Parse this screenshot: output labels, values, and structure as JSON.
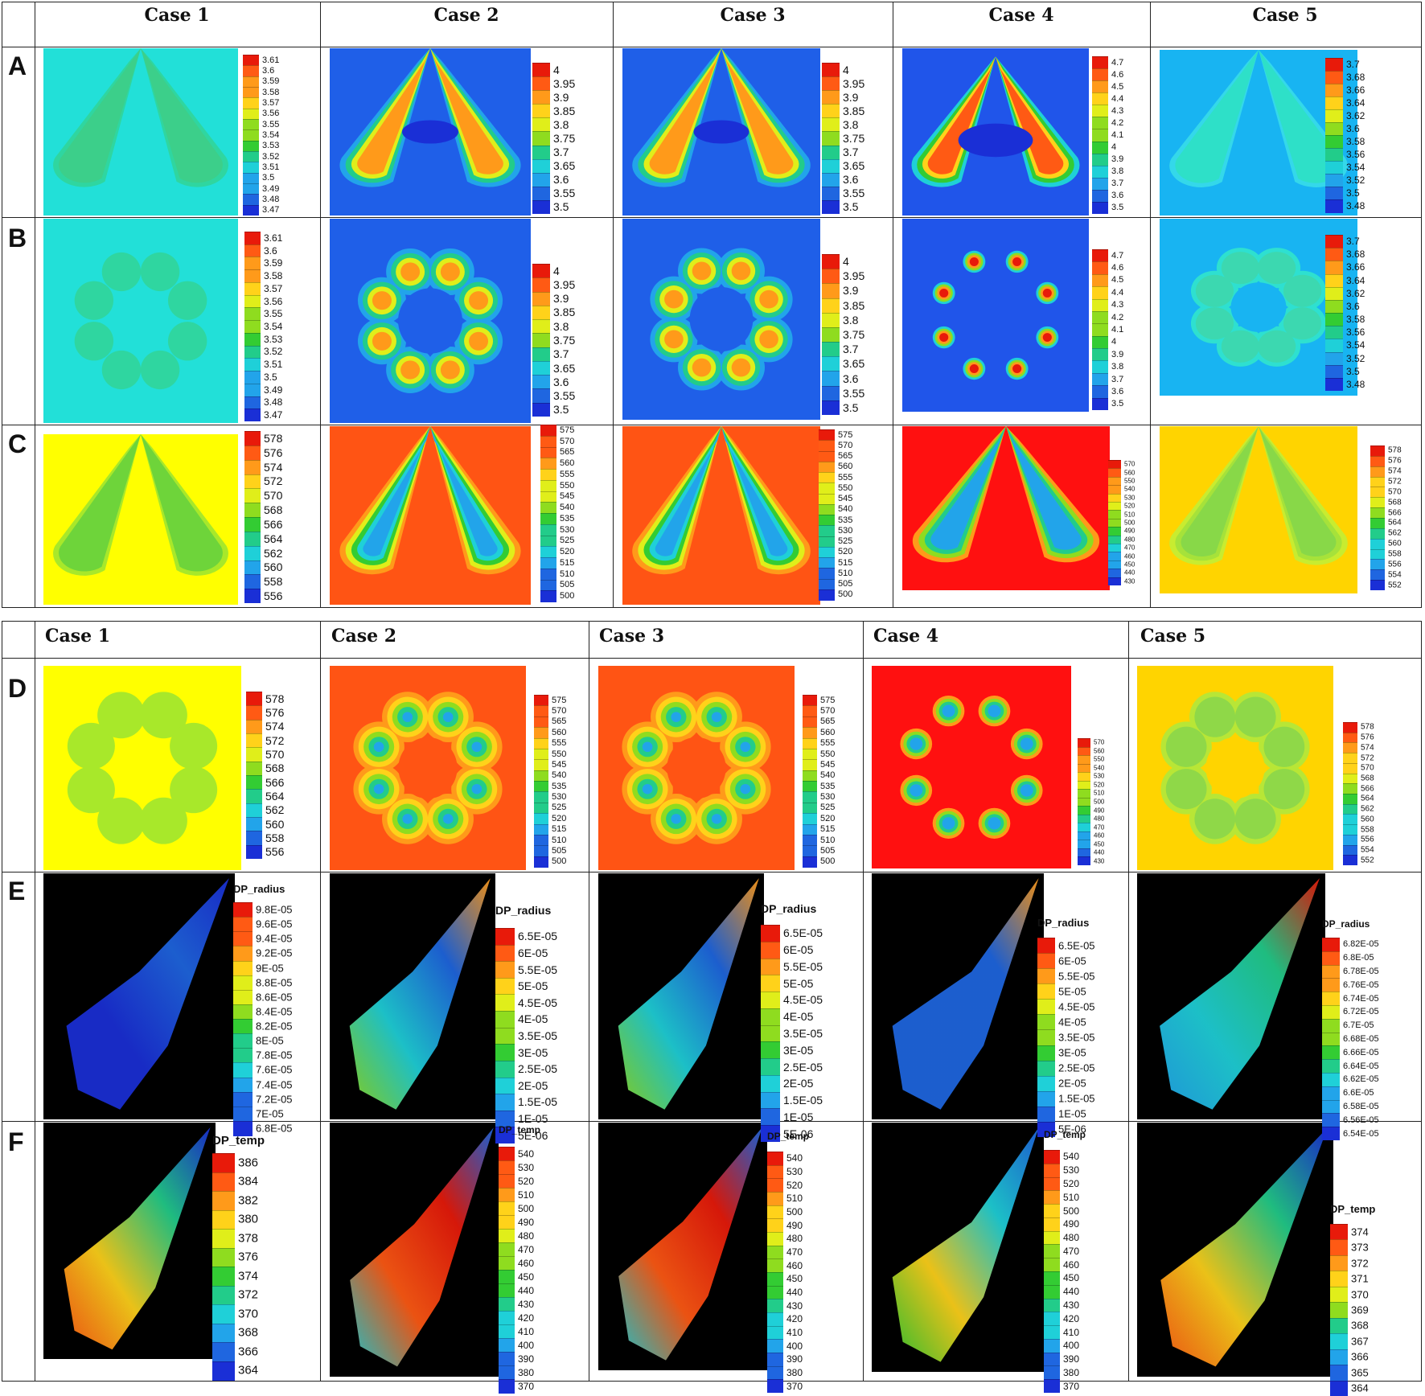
{
  "top_table": {
    "headers": [
      "Case 1",
      "Case 2",
      "Case 3",
      "Case 4",
      "Case 5"
    ],
    "rows": [
      "A",
      "B",
      "C"
    ]
  },
  "bottom_table": {
    "headers": [
      "Case 1",
      "Case 2",
      "Case 3",
      "Case 4",
      "Case 5"
    ],
    "rows": [
      "D",
      "E",
      "F"
    ]
  },
  "colors": {
    "ramp": [
      "#1a2fd6",
      "#1f66e0",
      "#22a4ea",
      "#1fd0d8",
      "#22cc8a",
      "#33cc33",
      "#8fdc1f",
      "#e0ee1a",
      "#ffd21a",
      "#ff9a1a",
      "#ff5a14",
      "#e81a0a"
    ],
    "case1_bg": "#22e0d8",
    "case2_bg": "#1f5fe8",
    "case4_bg": "#2055ea",
    "case5_bg": "#18b4f2",
    "temp1_bg": "#ffff00",
    "temp23_bg": "#ff5414",
    "temp4_bg": "#ff1010",
    "temp5_bg": "#ffd400",
    "particle_bg": "#000000"
  },
  "legends": {
    "A1": {
      "title": "",
      "ticks": [
        "3.61",
        "3.6",
        "3.59",
        "3.58",
        "3.57",
        "3.56",
        "3.55",
        "3.54",
        "3.53",
        "3.52",
        "3.51",
        "3.5",
        "3.49",
        "3.48",
        "3.47"
      ]
    },
    "A2": {
      "title": "",
      "ticks": [
        "4",
        "3.95",
        "3.9",
        "3.85",
        "3.8",
        "3.75",
        "3.7",
        "3.65",
        "3.6",
        "3.55",
        "3.5"
      ]
    },
    "A3": {
      "title": "",
      "ticks": [
        "4",
        "3.95",
        "3.9",
        "3.85",
        "3.8",
        "3.75",
        "3.7",
        "3.65",
        "3.6",
        "3.55",
        "3.5"
      ]
    },
    "A4": {
      "title": "",
      "ticks": [
        "4.7",
        "4.6",
        "4.5",
        "4.4",
        "4.3",
        "4.2",
        "4.1",
        "4",
        "3.9",
        "3.8",
        "3.7",
        "3.6",
        "3.5"
      ]
    },
    "A5": {
      "title": "",
      "ticks": [
        "3.7",
        "3.68",
        "3.66",
        "3.64",
        "3.62",
        "3.6",
        "3.58",
        "3.56",
        "3.54",
        "3.52",
        "3.5",
        "3.48"
      ]
    },
    "B1": {
      "title": "",
      "ticks": [
        "3.61",
        "3.6",
        "3.59",
        "3.58",
        "3.57",
        "3.56",
        "3.55",
        "3.54",
        "3.53",
        "3.52",
        "3.51",
        "3.5",
        "3.49",
        "3.48",
        "3.47"
      ]
    },
    "B2": {
      "title": "",
      "ticks": [
        "4",
        "3.95",
        "3.9",
        "3.85",
        "3.8",
        "3.75",
        "3.7",
        "3.65",
        "3.6",
        "3.55",
        "3.5"
      ]
    },
    "B3": {
      "title": "",
      "ticks": [
        "4",
        "3.95",
        "3.9",
        "3.85",
        "3.8",
        "3.75",
        "3.7",
        "3.65",
        "3.6",
        "3.55",
        "3.5"
      ]
    },
    "B4": {
      "title": "",
      "ticks": [
        "4.7",
        "4.6",
        "4.5",
        "4.4",
        "4.3",
        "4.2",
        "4.1",
        "4",
        "3.9",
        "3.8",
        "3.7",
        "3.6",
        "3.5"
      ]
    },
    "B5": {
      "title": "",
      "ticks": [
        "3.7",
        "3.68",
        "3.66",
        "3.64",
        "3.62",
        "3.6",
        "3.58",
        "3.56",
        "3.54",
        "3.52",
        "3.5",
        "3.48"
      ]
    },
    "C1": {
      "title": "",
      "ticks": [
        "578",
        "576",
        "574",
        "572",
        "570",
        "568",
        "566",
        "564",
        "562",
        "560",
        "558",
        "556"
      ]
    },
    "C2": {
      "title": "",
      "ticks": [
        "575",
        "570",
        "565",
        "560",
        "555",
        "550",
        "545",
        "540",
        "535",
        "530",
        "525",
        "520",
        "515",
        "510",
        "505",
        "500"
      ]
    },
    "C3": {
      "title": "",
      "ticks": [
        "575",
        "570",
        "565",
        "560",
        "555",
        "550",
        "545",
        "540",
        "535",
        "530",
        "525",
        "520",
        "515",
        "510",
        "505",
        "500"
      ]
    },
    "C4": {
      "title": "",
      "ticks": [
        "570",
        "560",
        "550",
        "540",
        "530",
        "520",
        "510",
        "500",
        "490",
        "480",
        "470",
        "460",
        "450",
        "440",
        "430"
      ]
    },
    "C5": {
      "title": "",
      "ticks": [
        "578",
        "576",
        "574",
        "572",
        "570",
        "568",
        "566",
        "564",
        "562",
        "560",
        "558",
        "556",
        "554",
        "552"
      ]
    },
    "D1": {
      "title": "",
      "ticks": [
        "578",
        "576",
        "574",
        "572",
        "570",
        "568",
        "566",
        "564",
        "562",
        "560",
        "558",
        "556"
      ]
    },
    "D2": {
      "title": "",
      "ticks": [
        "575",
        "570",
        "565",
        "560",
        "555",
        "550",
        "545",
        "540",
        "535",
        "530",
        "525",
        "520",
        "515",
        "510",
        "505",
        "500"
      ]
    },
    "D3": {
      "title": "",
      "ticks": [
        "575",
        "570",
        "565",
        "560",
        "555",
        "550",
        "545",
        "540",
        "535",
        "530",
        "525",
        "520",
        "515",
        "510",
        "505",
        "500"
      ]
    },
    "D4": {
      "title": "",
      "ticks": [
        "570",
        "560",
        "550",
        "540",
        "530",
        "520",
        "510",
        "500",
        "490",
        "480",
        "470",
        "460",
        "450",
        "440",
        "430"
      ]
    },
    "D5": {
      "title": "",
      "ticks": [
        "578",
        "576",
        "574",
        "572",
        "570",
        "568",
        "566",
        "564",
        "562",
        "560",
        "558",
        "556",
        "554",
        "552"
      ]
    },
    "E1": {
      "title": "DP_radius",
      "ticks": [
        "9.8E-05",
        "9.6E-05",
        "9.4E-05",
        "9.2E-05",
        "9E-05",
        "8.8E-05",
        "8.6E-05",
        "8.4E-05",
        "8.2E-05",
        "8E-05",
        "7.8E-05",
        "7.6E-05",
        "7.4E-05",
        "7.2E-05",
        "7E-05",
        "6.8E-05"
      ]
    },
    "E2": {
      "title": "DP_radius",
      "ticks": [
        "6.5E-05",
        "6E-05",
        "5.5E-05",
        "5E-05",
        "4.5E-05",
        "4E-05",
        "3.5E-05",
        "3E-05",
        "2.5E-05",
        "2E-05",
        "1.5E-05",
        "1E-05",
        "5E-06"
      ]
    },
    "E3": {
      "title": "DP_radius",
      "ticks": [
        "6.5E-05",
        "6E-05",
        "5.5E-05",
        "5E-05",
        "4.5E-05",
        "4E-05",
        "3.5E-05",
        "3E-05",
        "2.5E-05",
        "2E-05",
        "1.5E-05",
        "1E-05",
        "5E-06"
      ]
    },
    "E4": {
      "title": "DP_radius",
      "ticks": [
        "6.5E-05",
        "6E-05",
        "5.5E-05",
        "5E-05",
        "4.5E-05",
        "4E-05",
        "3.5E-05",
        "3E-05",
        "2.5E-05",
        "2E-05",
        "1.5E-05",
        "1E-05",
        "5E-06"
      ]
    },
    "E5": {
      "title": "DP_radius",
      "ticks": [
        "6.82E-05",
        "6.8E-05",
        "6.78E-05",
        "6.76E-05",
        "6.74E-05",
        "6.72E-05",
        "6.7E-05",
        "6.68E-05",
        "6.66E-05",
        "6.64E-05",
        "6.62E-05",
        "6.6E-05",
        "6.58E-05",
        "6.56E-05",
        "6.54E-05"
      ]
    },
    "F1": {
      "title": "DP_temp",
      "ticks": [
        "386",
        "384",
        "382",
        "380",
        "378",
        "376",
        "374",
        "372",
        "370",
        "368",
        "366",
        "364"
      ]
    },
    "F2": {
      "title": "DP_temp",
      "ticks": [
        "540",
        "530",
        "520",
        "510",
        "500",
        "490",
        "480",
        "470",
        "460",
        "450",
        "440",
        "430",
        "420",
        "410",
        "400",
        "390",
        "380",
        "370"
      ]
    },
    "F3": {
      "title": "DP_temp",
      "ticks": [
        "540",
        "530",
        "520",
        "510",
        "500",
        "490",
        "480",
        "470",
        "460",
        "450",
        "440",
        "430",
        "420",
        "410",
        "400",
        "390",
        "380",
        "370"
      ]
    },
    "F4": {
      "title": "DP_temp",
      "ticks": [
        "540",
        "530",
        "520",
        "510",
        "500",
        "490",
        "480",
        "470",
        "460",
        "450",
        "440",
        "430",
        "420",
        "410",
        "400",
        "390",
        "380",
        "370"
      ]
    },
    "F5": {
      "title": "DP_temp",
      "ticks": [
        "374",
        "373",
        "372",
        "371",
        "370",
        "369",
        "368",
        "367",
        "366",
        "365",
        "364"
      ]
    }
  }
}
